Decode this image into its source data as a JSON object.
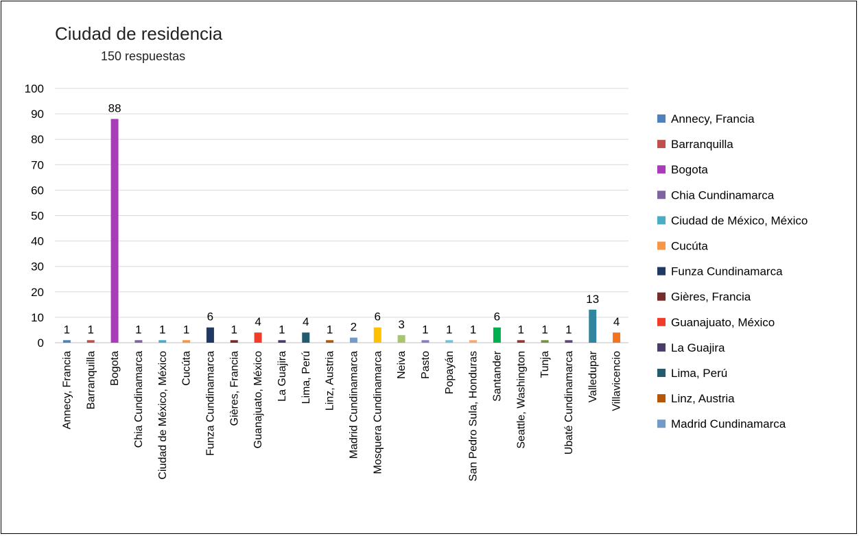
{
  "chart_data": {
    "type": "bar",
    "title": "Ciudad de residencia",
    "subtitle": "150 respuestas",
    "xlabel": "",
    "ylabel": "",
    "ylim": [
      0,
      100
    ],
    "yticks": [
      0,
      10,
      20,
      30,
      40,
      50,
      60,
      70,
      80,
      90,
      100
    ],
    "grid": true,
    "legend_position": "right",
    "categories": [
      "Annecy, Francia",
      "Barranquilla",
      "Bogota",
      "Chia Cundinamarca",
      "Ciudad de México, México",
      "Cucúta",
      "Funza Cundinamarca",
      "Gières, Francia",
      "Guanajuato, México",
      "La Guajira",
      "Lima, Perú",
      "Linz, Austria",
      "Madrid Cundinamarca",
      "Mosquera Cundinamarca",
      "Neiva",
      "Pasto",
      "Popayán",
      "San Pedro Sula, Honduras",
      "Santander",
      "Seattle, Washington",
      "Tunja",
      "Ubaté Cundinamarca",
      "Valledupar",
      "Villavicencio"
    ],
    "values": [
      1,
      1,
      88,
      1,
      1,
      1,
      6,
      1,
      4,
      1,
      4,
      1,
      2,
      6,
      3,
      1,
      1,
      1,
      6,
      1,
      1,
      1,
      13,
      4
    ],
    "colors": [
      "#4F81BD",
      "#C0504D",
      "#A93CB8",
      "#8064A2",
      "#4BACC6",
      "#F79646",
      "#1F3864",
      "#772C2A",
      "#F23C2A",
      "#4A3B6B",
      "#215D6E",
      "#B65708",
      "#729ACA",
      "#FFC000",
      "#A9C66E",
      "#8E7CC3",
      "#6CC5D9",
      "#F8A870",
      "#00B050",
      "#943634",
      "#77933C",
      "#5F497A",
      "#31859C",
      "#F27421"
    ],
    "legend_visible": [
      "Annecy, Francia",
      "Barranquilla",
      "Bogota",
      "Chia Cundinamarca",
      "Ciudad de México, México",
      "Cucúta",
      "Funza Cundinamarca",
      "Gières, Francia",
      "Guanajuato, México",
      "La Guajira",
      "Lima, Perú",
      "Linz, Austria",
      "Madrid Cundinamarca"
    ]
  }
}
